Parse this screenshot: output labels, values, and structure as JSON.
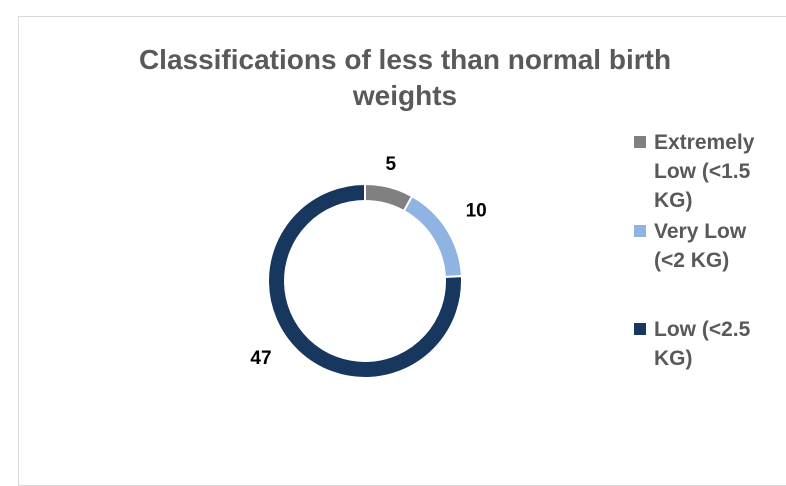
{
  "chart_data": {
    "type": "donut",
    "title": "Classifications of less than normal birth\nweights",
    "categories": [
      "Extremely Low (<1.5 KG)",
      "Very Low (<2 KG)",
      "Low (<2.5 KG)"
    ],
    "values": [
      5,
      10,
      47
    ],
    "colors": [
      "#808080",
      "#8fb4e3",
      "#17375e"
    ],
    "legend_position": "right",
    "data_labels": true
  }
}
